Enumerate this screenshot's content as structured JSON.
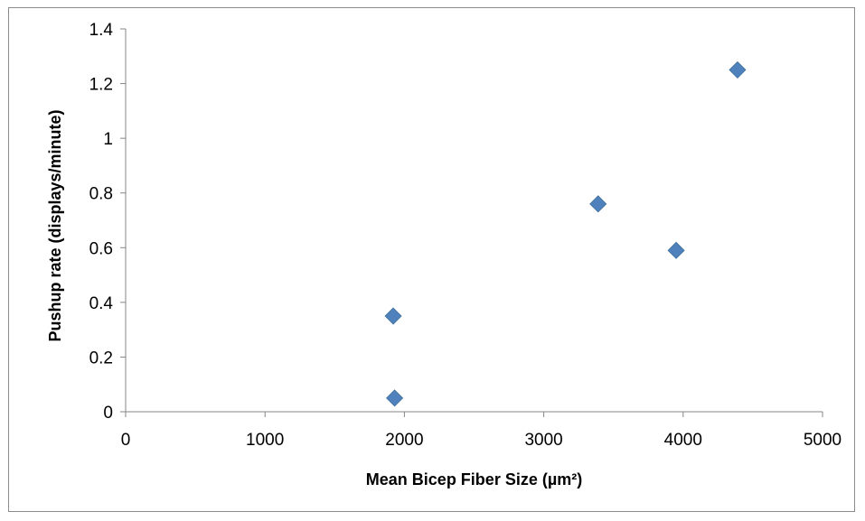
{
  "chart_data": {
    "type": "scatter",
    "title": "",
    "xlabel": "Mean Bicep Fiber Size (µm²)",
    "ylabel": "Pushup rate (displays/minute)",
    "xlim": [
      0,
      5000
    ],
    "ylim": [
      0,
      1.4
    ],
    "x_ticks": [
      "0",
      "1000",
      "2000",
      "3000",
      "4000",
      "5000"
    ],
    "y_ticks": [
      "0",
      "0.2",
      "0.4",
      "0.6",
      "0.8",
      "1",
      "1.2",
      "1.4"
    ],
    "grid": false,
    "legend": "none",
    "marker": "diamond",
    "marker_color": "#4f81bd",
    "points": [
      {
        "x": 1920,
        "y": 0.35
      },
      {
        "x": 1930,
        "y": 0.05
      },
      {
        "x": 3390,
        "y": 0.76
      },
      {
        "x": 3950,
        "y": 0.59
      },
      {
        "x": 4390,
        "y": 1.25
      }
    ]
  }
}
